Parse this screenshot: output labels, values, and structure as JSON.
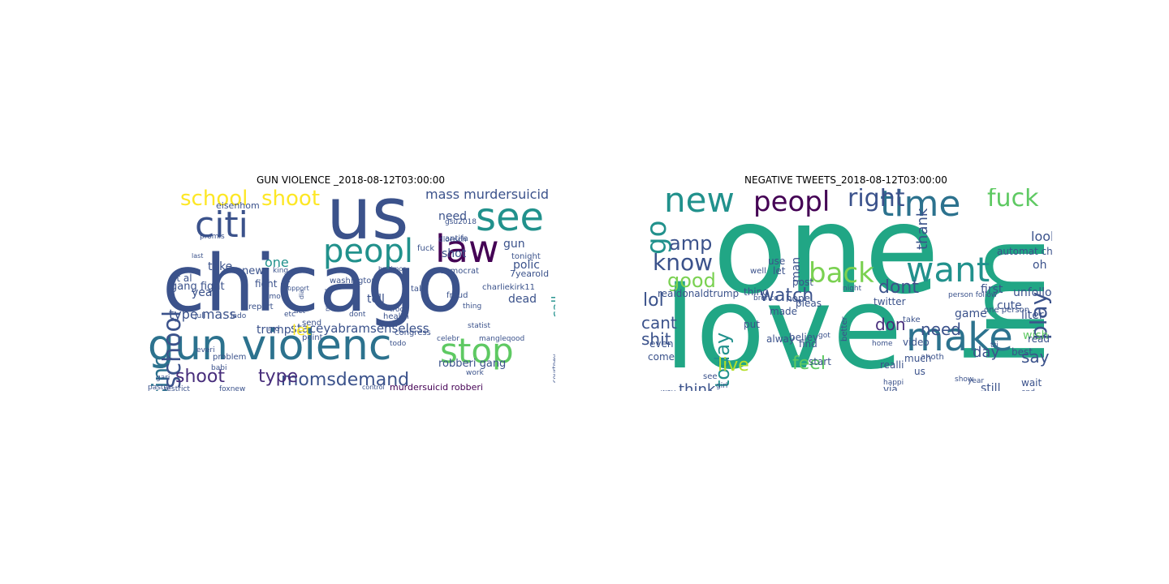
{
  "figure": {
    "panels": [
      {
        "title": "GUN VIOLENCE _2018-08-12T03:00:00",
        "words": [
          {
            "t": "chicago",
            "c": "#3b528b"
          },
          {
            "t": "us",
            "c": "#3b528b"
          },
          {
            "t": "gun violenc",
            "c": "#2c728e"
          },
          {
            "t": "law",
            "c": "#440154"
          },
          {
            "t": "citi",
            "c": "#3b528b"
          },
          {
            "t": "see",
            "c": "#21918c"
          },
          {
            "t": "peopl",
            "c": "#21918c"
          },
          {
            "t": "stop",
            "c": "#5ec962"
          },
          {
            "t": "sinc",
            "c": "#2c728e"
          },
          {
            "t": "school",
            "c": "#3b528b"
          },
          {
            "t": "school",
            "c": "#fde725"
          },
          {
            "t": "shoot",
            "c": "#fde725"
          },
          {
            "t": "momsdemand",
            "c": "#3b528b"
          },
          {
            "t": "shoot",
            "c": "#472d7b"
          },
          {
            "t": "type",
            "c": "#472d7b"
          },
          {
            "t": "mass murdersuicid",
            "c": "#3b528b"
          },
          {
            "t": "type mass",
            "c": "#3b528b"
          },
          {
            "t": "staceyabram",
            "c": "#3b528b"
          },
          {
            "t": "senseless",
            "c": "#3b528b"
          },
          {
            "t": "trump",
            "c": "#3b528b"
          },
          {
            "t": "robberi gang",
            "c": "#3b528b"
          },
          {
            "t": "murdersuicid robberi",
            "c": "#440154"
          },
          {
            "t": "year",
            "c": "#3b528b"
          },
          {
            "t": "take",
            "c": "#3b528b"
          },
          {
            "t": "one",
            "c": "#21918c"
          },
          {
            "t": "new",
            "c": "#3b528b"
          },
          {
            "t": "tell",
            "c": "#3b528b"
          },
          {
            "t": "polic",
            "c": "#3b528b"
          },
          {
            "t": "dead",
            "c": "#3b528b"
          },
          {
            "t": "gun",
            "c": "#3b528b"
          },
          {
            "t": "need",
            "c": "#3b528b"
          },
          {
            "t": "shot",
            "c": "#3b528b"
          },
          {
            "t": "call",
            "c": "#21918c"
          },
          {
            "t": "place",
            "c": "#5ec962"
          },
          {
            "t": "let",
            "c": "#fde725"
          },
          {
            "t": "gang fight",
            "c": "#3b528b"
          },
          {
            "t": "fight et",
            "c": "#3b528b"
          },
          {
            "t": "et al",
            "c": "#3b528b"
          },
          {
            "t": "eisenhom",
            "c": "#3b528b"
          },
          {
            "t": "7yearold",
            "c": "#3b528b"
          },
          {
            "t": "tonight",
            "c": "#3b528b"
          },
          {
            "t": "antifa",
            "c": "#3b528b"
          },
          {
            "t": "washington",
            "c": "#3b528b"
          },
          {
            "t": "charliekirk11",
            "c": "#3b528b"
          },
          {
            "t": "report",
            "c": "#3b528b"
          },
          {
            "t": "health",
            "c": "#3b528b"
          },
          {
            "t": "congress",
            "c": "#3b528b"
          },
          {
            "t": "fraud",
            "c": "#3b528b"
          },
          {
            "t": "democrat",
            "c": "#3b528b"
          },
          {
            "t": "talk",
            "c": "#3b528b"
          },
          {
            "t": "fuck",
            "c": "#3b528b"
          },
          {
            "t": "send",
            "c": "#3b528b"
          },
          {
            "t": "point",
            "c": "#3b528b"
          },
          {
            "t": "problem",
            "c": "#3b528b"
          },
          {
            "t": "pastor",
            "c": "#3b528b"
          },
          {
            "t": "restrict",
            "c": "#3b528b"
          },
          {
            "t": "foxnew",
            "c": "#3b528b"
          },
          {
            "t": "juli",
            "c": "#3b528b"
          },
          {
            "t": "lado",
            "c": "#3b528b"
          },
          {
            "t": "babi",
            "c": "#3b528b"
          },
          {
            "t": "gari",
            "c": "#3b528b"
          },
          {
            "t": "everi",
            "c": "#3b528b"
          },
          {
            "t": "dloesch",
            "c": "#3b528b"
          },
          {
            "t": "gsu2018",
            "c": "#3b528b"
          },
          {
            "t": "mangleqood",
            "c": "#3b528b"
          },
          {
            "t": "work",
            "c": "#3b528b"
          },
          {
            "t": "statist",
            "c": "#3b528b"
          },
          {
            "t": "etc",
            "c": "#3b528b"
          },
          {
            "t": "troop",
            "c": "#3b528b"
          },
          {
            "t": "dont",
            "c": "#3b528b"
          },
          {
            "t": "todo",
            "c": "#3b528b"
          },
          {
            "t": "thing",
            "c": "#3b528b"
          },
          {
            "t": "act",
            "c": "#3b528b"
          },
          {
            "t": "king",
            "c": "#3b528b"
          },
          {
            "t": "promis",
            "c": "#3b528b"
          },
          {
            "t": "last",
            "c": "#3b528b"
          },
          {
            "t": "tmo",
            "c": "#3b528b"
          },
          {
            "t": "md",
            "c": "#3b528b"
          },
          {
            "t": "dia",
            "c": "#3b528b"
          },
          {
            "t": "mental",
            "c": "#3b528b"
          },
          {
            "t": "control",
            "c": "#3b528b"
          },
          {
            "t": "baltimor",
            "c": "#3b528b"
          },
          {
            "t": "courtney",
            "c": "#3b528b"
          },
          {
            "t": "support",
            "c": "#3b528b"
          },
          {
            "t": "celebr",
            "c": "#3b528b"
          }
        ]
      },
      {
        "title": "NEGATIVE TWEETS_2018-08-12T03:00:00",
        "words": [
          {
            "t": "one",
            "c": "#21a685"
          },
          {
            "t": "love",
            "c": "#21a685"
          },
          {
            "t": "im",
            "c": "#21a685"
          },
          {
            "t": "time",
            "c": "#2c728e"
          },
          {
            "t": "new",
            "c": "#21918c"
          },
          {
            "t": "peopl",
            "c": "#440154"
          },
          {
            "t": "right",
            "c": "#3b528b"
          },
          {
            "t": "fuck",
            "c": "#5ec962"
          },
          {
            "t": "want",
            "c": "#21918c"
          },
          {
            "t": "make",
            "c": "#2c728e"
          },
          {
            "t": "back",
            "c": "#7ad151"
          },
          {
            "t": "go",
            "c": "#21918c"
          },
          {
            "t": "know",
            "c": "#3b528b"
          },
          {
            "t": "amp",
            "c": "#3b528b"
          },
          {
            "t": "good",
            "c": "#7ad151"
          },
          {
            "t": "play",
            "c": "#3b528b"
          },
          {
            "t": "watch",
            "c": "#3b528b"
          },
          {
            "t": "today",
            "c": "#21918c"
          },
          {
            "t": "dont",
            "c": "#3b528b"
          },
          {
            "t": "don",
            "c": "#472d7b"
          },
          {
            "t": "thank",
            "c": "#3b528b"
          },
          {
            "t": "lol",
            "c": "#3b528b"
          },
          {
            "t": "cant",
            "c": "#3b528b"
          },
          {
            "t": "shit",
            "c": "#3b528b"
          },
          {
            "t": "live",
            "c": "#b5de2b"
          },
          {
            "t": "feel",
            "c": "#5ec962"
          },
          {
            "t": "need",
            "c": "#3b528b"
          },
          {
            "t": "day",
            "c": "#3b528b"
          },
          {
            "t": "say",
            "c": "#3b528b"
          },
          {
            "t": "think",
            "c": "#3b528b"
          },
          {
            "t": "look",
            "c": "#3b528b"
          },
          {
            "t": "oh",
            "c": "#3b528b"
          },
          {
            "t": "man",
            "c": "#3b528b"
          },
          {
            "t": "realdonaldtrump",
            "c": "#3b528b"
          },
          {
            "t": "automat check",
            "c": "#3b528b"
          },
          {
            "t": "unfollow automat",
            "c": "#3b528b"
          },
          {
            "t": "first",
            "c": "#3b528b"
          },
          {
            "t": "game",
            "c": "#3b528b"
          },
          {
            "t": "cute",
            "c": "#3b528b"
          },
          {
            "t": "liter",
            "c": "#3b528b"
          },
          {
            "t": "wish",
            "c": "#5ec962"
          },
          {
            "t": "read",
            "c": "#3b528b"
          },
          {
            "t": "best",
            "c": "#3b528b"
          },
          {
            "t": "still",
            "c": "#3b528b"
          },
          {
            "t": "wait",
            "c": "#3b528b"
          },
          {
            "t": "black",
            "c": "#3b528b"
          },
          {
            "t": "via",
            "c": "#3b528b"
          },
          {
            "t": "us",
            "c": "#3b528b"
          },
          {
            "t": "realli",
            "c": "#3b528b"
          },
          {
            "t": "video",
            "c": "#3b528b"
          },
          {
            "t": "much",
            "c": "#3b528b"
          },
          {
            "t": "believ",
            "c": "#3b528b"
          },
          {
            "t": "start",
            "c": "#3b528b"
          },
          {
            "t": "find",
            "c": "#3b528b"
          },
          {
            "t": "hope",
            "c": "#3b528b"
          },
          {
            "t": "made",
            "c": "#3b528b"
          },
          {
            "t": "let",
            "c": "#3b528b"
          },
          {
            "t": "pleas",
            "c": "#3b528b"
          },
          {
            "t": "post",
            "c": "#3b528b"
          },
          {
            "t": "use",
            "c": "#3b528b"
          },
          {
            "t": "well",
            "c": "#3b528b"
          },
          {
            "t": "thing",
            "c": "#3b528b"
          },
          {
            "t": "alway",
            "c": "#3b528b"
          },
          {
            "t": "put",
            "c": "#3b528b"
          },
          {
            "t": "even",
            "c": "#3b528b"
          },
          {
            "t": "come",
            "c": "#3b528b"
          },
          {
            "t": "see",
            "c": "#3b528b"
          },
          {
            "t": "better",
            "c": "#3b528b"
          },
          {
            "t": "twitter",
            "c": "#3b528b"
          },
          {
            "t": "take",
            "c": "#3b528b"
          },
          {
            "t": "year",
            "c": "#3b528b"
          },
          {
            "t": "show",
            "c": "#3b528b"
          },
          {
            "t": "anoth",
            "c": "#3b528b"
          },
          {
            "t": "way",
            "c": "#3b528b"
          },
          {
            "t": "one person",
            "c": "#3b528b"
          },
          {
            "t": "person follow",
            "c": "#3b528b"
          },
          {
            "t": "girl",
            "c": "#3b528b"
          },
          {
            "t": "home",
            "c": "#3b528b"
          },
          {
            "t": "night",
            "c": "#3b528b"
          },
          {
            "t": "tri",
            "c": "#3b528b"
          },
          {
            "t": "got",
            "c": "#3b528b"
          },
          {
            "t": "bronco",
            "c": "#3b528b"
          },
          {
            "t": "happi",
            "c": "#3b528b"
          },
          {
            "t": "end",
            "c": "#3b528b"
          }
        ]
      }
    ]
  }
}
